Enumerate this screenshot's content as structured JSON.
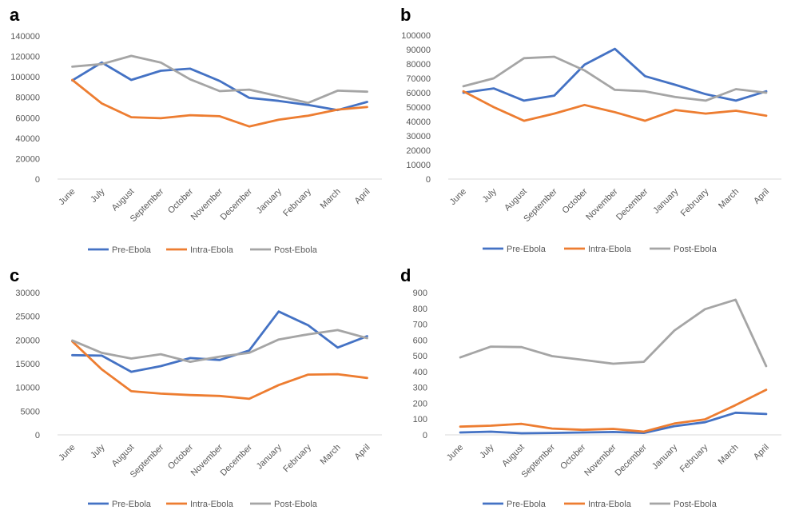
{
  "colors": {
    "pre": "#4472c4",
    "intra": "#ed7d31",
    "post": "#a5a5a5"
  },
  "chart_data": [
    {
      "panel": "a",
      "type": "line",
      "categories": [
        "June",
        "July",
        "August",
        "September",
        "October",
        "November",
        "December",
        "January",
        "February",
        "March",
        "April"
      ],
      "y_ticks": [
        "0",
        "20000",
        "40000",
        "60000",
        "80000",
        "100000",
        "120000",
        "140000"
      ],
      "ylim": [
        0,
        140000
      ],
      "grid": false,
      "legend": "bottom",
      "series": [
        {
          "name": "Pre-Ebola",
          "values": [
            96500,
            114000,
            97000,
            106000,
            108000,
            96000,
            79500,
            76500,
            72500,
            67500,
            75500
          ]
        },
        {
          "name": "Intra-Ebola",
          "values": [
            97000,
            74000,
            60500,
            59500,
            62500,
            61500,
            51500,
            58000,
            62000,
            68000,
            70500
          ]
        },
        {
          "name": "Post-Ebola",
          "values": [
            110000,
            112500,
            120500,
            114000,
            97500,
            86000,
            87500,
            81000,
            74500,
            86500,
            85500
          ]
        }
      ]
    },
    {
      "panel": "b",
      "type": "line",
      "categories": [
        "June",
        "July",
        "August",
        "September",
        "October",
        "November",
        "December",
        "January",
        "February",
        "March",
        "April"
      ],
      "y_ticks": [
        "0",
        "10000",
        "20000",
        "30000",
        "40000",
        "50000",
        "60000",
        "70000",
        "80000",
        "90000",
        "100000"
      ],
      "ylim": [
        0,
        100000
      ],
      "grid": false,
      "legend": "bottom",
      "series": [
        {
          "name": "Pre-Ebola",
          "values": [
            60000,
            63000,
            54500,
            58000,
            79500,
            90500,
            71500,
            65500,
            59000,
            54500,
            61000
          ]
        },
        {
          "name": "Intra-Ebola",
          "values": [
            61000,
            50000,
            40500,
            45500,
            51500,
            46500,
            40500,
            48000,
            45500,
            47500,
            44000
          ]
        },
        {
          "name": "Post-Ebola",
          "values": [
            64500,
            70000,
            84000,
            85000,
            75500,
            62000,
            61000,
            57000,
            54500,
            62500,
            60000
          ]
        }
      ]
    },
    {
      "panel": "c",
      "type": "line",
      "categories": [
        "June",
        "July",
        "August",
        "September",
        "October",
        "November",
        "December",
        "January",
        "February",
        "March",
        "April"
      ],
      "y_ticks": [
        "0",
        "5000",
        "10000",
        "15000",
        "20000",
        "25000",
        "30000"
      ],
      "ylim": [
        0,
        30000
      ],
      "grid": false,
      "legend": "bottom",
      "series": [
        {
          "name": "Pre-Ebola",
          "values": [
            16800,
            16700,
            13300,
            14500,
            16200,
            15800,
            17800,
            26000,
            23100,
            18400,
            20800
          ]
        },
        {
          "name": "Intra-Ebola",
          "values": [
            19700,
            13800,
            9200,
            8700,
            8400,
            8200,
            7600,
            10500,
            12700,
            12800,
            12000
          ]
        },
        {
          "name": "Post-Ebola",
          "values": [
            19900,
            17300,
            16100,
            17000,
            15400,
            16500,
            17300,
            20100,
            21200,
            22100,
            20400
          ]
        }
      ]
    },
    {
      "panel": "d",
      "type": "line",
      "categories": [
        "June",
        "July",
        "August",
        "September",
        "October",
        "November",
        "December",
        "January",
        "February",
        "March",
        "April"
      ],
      "y_ticks": [
        "0",
        "100",
        "200",
        "300",
        "400",
        "500",
        "600",
        "700",
        "800",
        "900"
      ],
      "ylim": [
        0,
        900
      ],
      "grid": false,
      "legend": "bottom",
      "series": [
        {
          "name": "Pre-Ebola",
          "values": [
            15,
            20,
            10,
            12,
            15,
            18,
            12,
            55,
            80,
            140,
            132
          ]
        },
        {
          "name": "Intra-Ebola",
          "values": [
            52,
            58,
            70,
            40,
            32,
            38,
            20,
            72,
            98,
            188,
            285
          ]
        },
        {
          "name": "Post-Ebola",
          "values": [
            490,
            558,
            555,
            498,
            475,
            450,
            462,
            660,
            795,
            855,
            435
          ]
        }
      ]
    }
  ]
}
